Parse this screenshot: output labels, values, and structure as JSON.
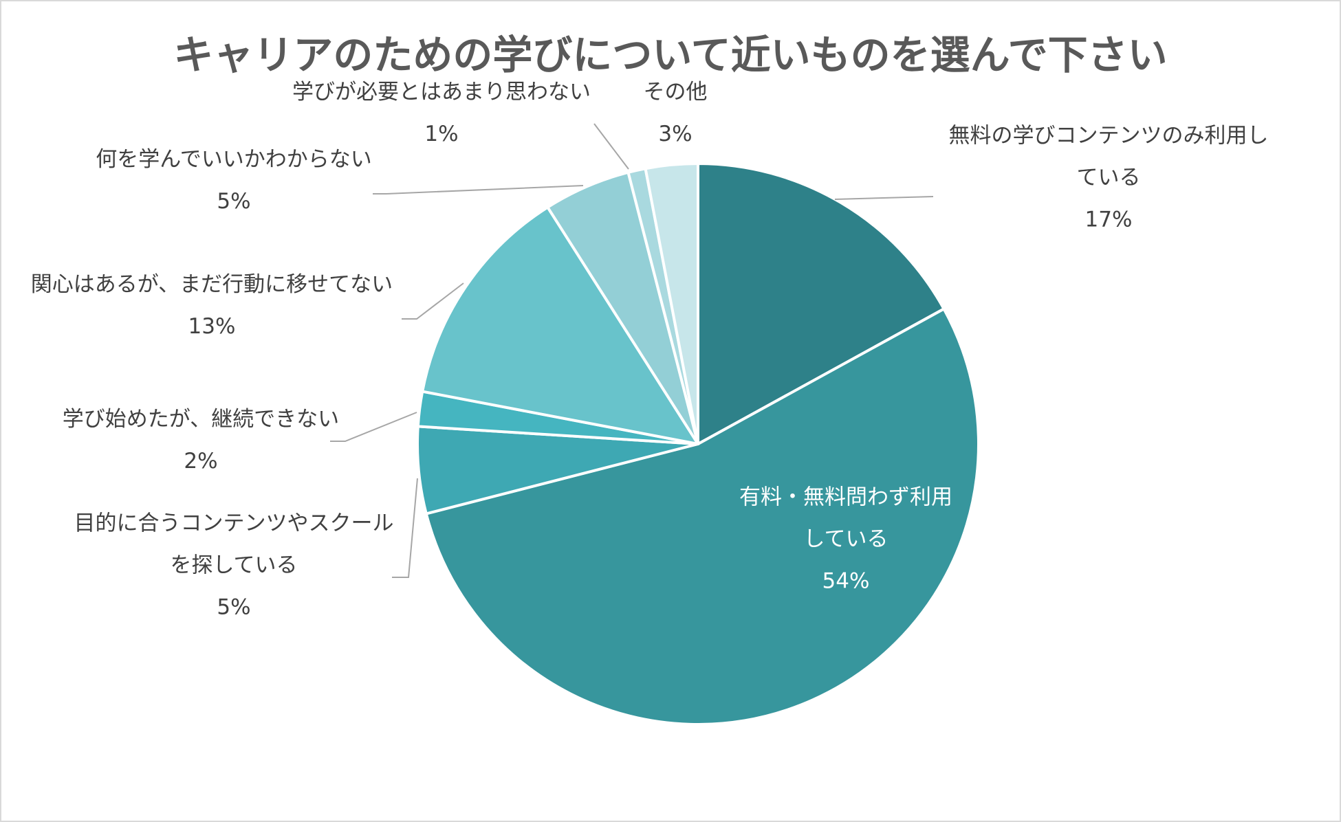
{
  "chart_data": {
    "type": "pie",
    "title": "キャリアのための学びについて近いものを選んで下さい",
    "slices": [
      {
        "label": [
          "無料の学びコンテンツのみ利用し",
          "ている"
        ],
        "percent_label": "17%",
        "value": 17,
        "color": "#2e8189"
      },
      {
        "label": [
          "有料・無料問わず利用",
          "している"
        ],
        "percent_label": "54%",
        "value": 54,
        "color": "#37969d"
      },
      {
        "label": [
          "目的に合うコンテンツやスクール",
          "を探している"
        ],
        "percent_label": "5%",
        "value": 5,
        "color": "#3ea8b3"
      },
      {
        "label": [
          "学び始めたが、継続できない"
        ],
        "percent_label": "2%",
        "value": 2,
        "color": "#45b5c0"
      },
      {
        "label": [
          "関心はあるが、まだ行動に移せてない"
        ],
        "percent_label": "13%",
        "value": 13,
        "color": "#68c3cb"
      },
      {
        "label": [
          "何を学んでいいかわからない"
        ],
        "percent_label": "5%",
        "value": 5,
        "color": "#93cfd6"
      },
      {
        "label": [
          "学びが必要とはあまり思わない"
        ],
        "percent_label": "1%",
        "value": 1,
        "color": "#a9d9df"
      },
      {
        "label": [
          "その他"
        ],
        "percent_label": "3%",
        "value": 3,
        "color": "#c7e6ea"
      }
    ],
    "legend": "none",
    "start_angle_deg": 0,
    "direction": "clockwise"
  }
}
